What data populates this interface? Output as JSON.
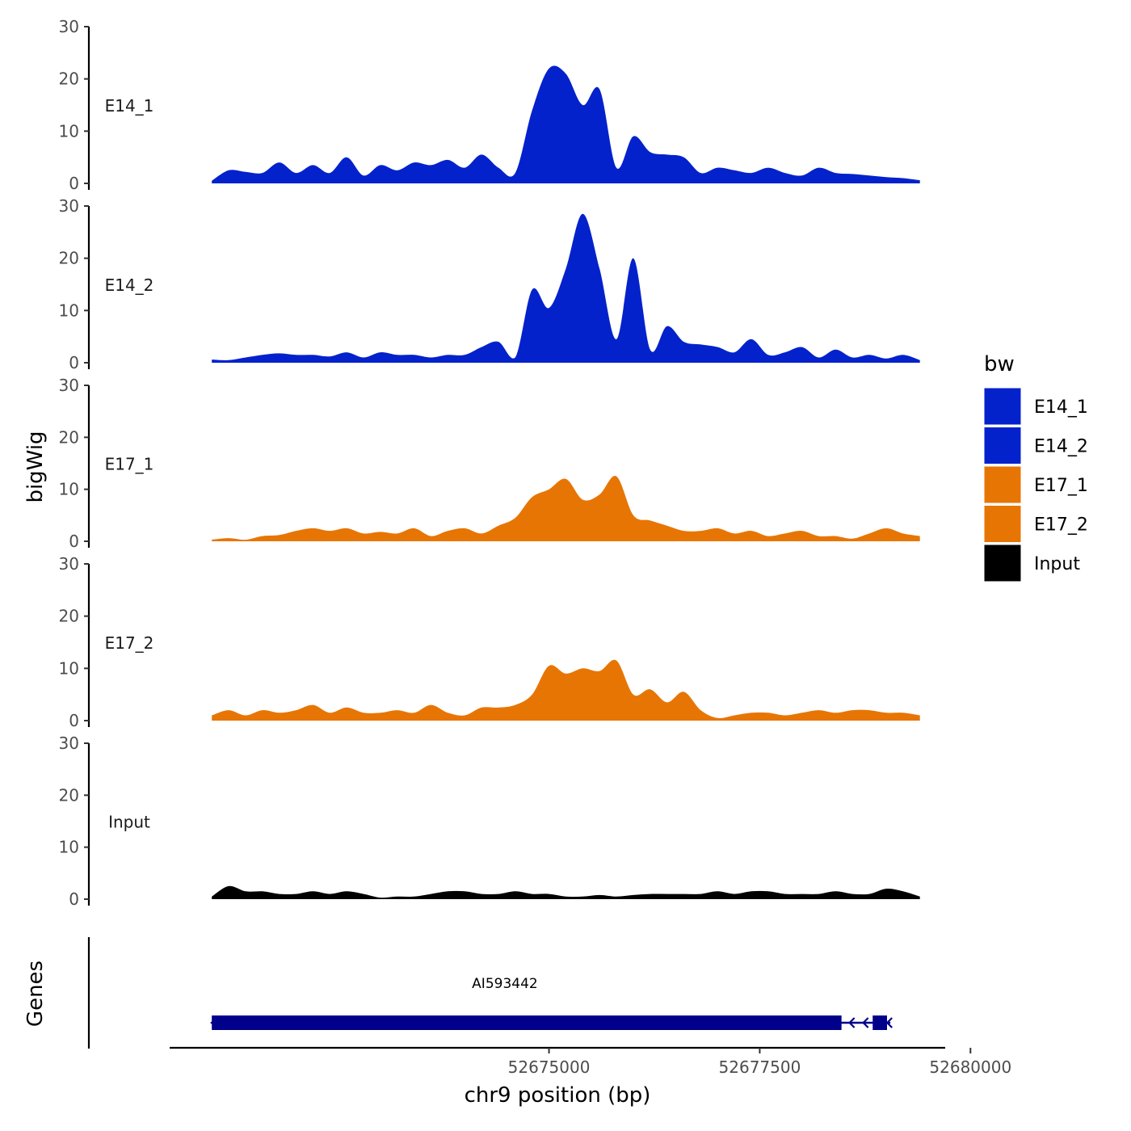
{
  "chart_data": {
    "type": "area",
    "ylabel": "bigWig",
    "genes_label": "Genes",
    "xlabel": "chr9 position (bp)",
    "xlim": [
      52670500,
      52679700
    ],
    "x_ticks": [
      52675000,
      52677500,
      52680000
    ],
    "x_tick_labels": [
      "52675000",
      "52677500",
      "52680000"
    ],
    "ylim": [
      0,
      30
    ],
    "y_ticks": [
      0,
      10,
      20,
      30
    ],
    "y_tick_labels": [
      "0",
      "10",
      "20",
      "30"
    ],
    "legend": {
      "title": "bw",
      "position": "right",
      "entries": [
        {
          "label": "E14_1",
          "color": "#0322CB"
        },
        {
          "label": "E14_2",
          "color": "#0322CB"
        },
        {
          "label": "E17_1",
          "color": "#E77504"
        },
        {
          "label": "E17_2",
          "color": "#E77504"
        },
        {
          "label": "Input",
          "color": "#000000"
        }
      ]
    },
    "x": [
      52671000,
      52671200,
      52671400,
      52671600,
      52671800,
      52672000,
      52672200,
      52672400,
      52672600,
      52672800,
      52673000,
      52673200,
      52673400,
      52673600,
      52673800,
      52674000,
      52674200,
      52674400,
      52674600,
      52674800,
      52675000,
      52675200,
      52675400,
      52675600,
      52675800,
      52676000,
      52676200,
      52676400,
      52676600,
      52676800,
      52677000,
      52677200,
      52677400,
      52677600,
      52677800,
      52678000,
      52678200,
      52678400,
      52678600,
      52678800,
      52679000,
      52679200,
      52679400
    ],
    "series": [
      {
        "name": "E14_1",
        "color": "#0322CB",
        "values": [
          0.5,
          2.5,
          2.2,
          2.0,
          4.0,
          2.0,
          3.5,
          2.0,
          5.0,
          1.5,
          3.5,
          2.5,
          4.0,
          3.5,
          4.5,
          3.0,
          5.5,
          3.0,
          2.0,
          14.0,
          22.0,
          21.0,
          15.0,
          18.0,
          3.0,
          9.0,
          6.0,
          5.5,
          5.0,
          2.0,
          3.0,
          2.5,
          2.0,
          3.0,
          2.0,
          1.5,
          3.0,
          2.0,
          1.8,
          1.5,
          1.2,
          1.0,
          0.6
        ]
      },
      {
        "name": "E14_2",
        "color": "#0322CB",
        "values": [
          0.6,
          0.5,
          1.0,
          1.5,
          1.8,
          1.5,
          1.5,
          1.2,
          2.0,
          1.0,
          2.0,
          1.5,
          1.5,
          1.0,
          1.5,
          1.5,
          3.0,
          4.0,
          1.0,
          14.0,
          10.5,
          18.0,
          28.5,
          18.0,
          4.5,
          20.0,
          2.5,
          7.0,
          4.0,
          3.5,
          3.0,
          2.0,
          4.5,
          1.5,
          2.0,
          3.0,
          1.0,
          2.5,
          1.0,
          1.5,
          0.8,
          1.5,
          0.5
        ]
      },
      {
        "name": "E17_1",
        "color": "#E77504",
        "values": [
          0.3,
          0.6,
          0.3,
          1.0,
          1.2,
          2.0,
          2.5,
          2.0,
          2.5,
          1.5,
          1.8,
          1.5,
          2.5,
          1.0,
          2.0,
          2.5,
          1.5,
          3.0,
          4.5,
          8.5,
          10.0,
          12.0,
          8.0,
          9.0,
          12.5,
          5.0,
          4.0,
          3.0,
          2.0,
          2.0,
          2.5,
          1.5,
          2.0,
          1.0,
          1.5,
          2.0,
          1.0,
          1.0,
          0.5,
          1.5,
          2.5,
          1.5,
          1.0
        ]
      },
      {
        "name": "E17_2",
        "color": "#E77504",
        "values": [
          1.0,
          2.0,
          1.0,
          2.0,
          1.5,
          2.0,
          3.0,
          1.5,
          2.5,
          1.5,
          1.5,
          2.0,
          1.5,
          3.0,
          1.5,
          1.0,
          2.5,
          2.5,
          3.0,
          5.0,
          10.5,
          9.0,
          10.0,
          9.5,
          11.5,
          5.0,
          6.0,
          3.5,
          5.5,
          2.0,
          0.5,
          1.0,
          1.5,
          1.5,
          1.0,
          1.5,
          2.0,
          1.5,
          2.0,
          2.0,
          1.5,
          1.5,
          1.0
        ]
      },
      {
        "name": "Input",
        "color": "#000000",
        "values": [
          0.5,
          2.5,
          1.5,
          1.5,
          1.0,
          1.0,
          1.5,
          1.0,
          1.5,
          1.0,
          0.3,
          0.5,
          0.5,
          1.0,
          1.5,
          1.5,
          1.0,
          1.0,
          1.5,
          1.0,
          1.0,
          0.5,
          0.5,
          0.8,
          0.5,
          0.8,
          1.0,
          1.0,
          1.0,
          1.0,
          1.5,
          1.0,
          1.5,
          1.5,
          1.0,
          1.0,
          1.0,
          1.5,
          1.0,
          1.0,
          2.0,
          1.5,
          0.5
        ]
      }
    ],
    "genes": [
      {
        "name": "AI593442",
        "color": "#00008B",
        "start": 52671000,
        "end": 52679050,
        "thick_start": 52671000,
        "thick_end": 52678470,
        "exon2_start": 52678840,
        "exon2_end": 52679010,
        "strand": "-"
      }
    ]
  }
}
